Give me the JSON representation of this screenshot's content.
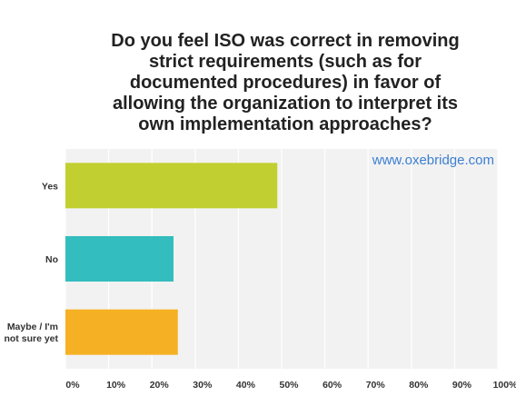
{
  "chart_data": {
    "type": "bar",
    "orientation": "horizontal",
    "title": "Do you feel ISO was correct in removing\nstrict requirements (such as for\ndocumented procedures) in favor of\nallowing the organization to interpret its\nown implementation approaches?",
    "categories": [
      "Yes",
      "No",
      "Maybe / I'm\nnot sure yet"
    ],
    "values": [
      49,
      25,
      26
    ],
    "bar_colors": [
      "#c2cf30",
      "#34bdbf",
      "#f6b023"
    ],
    "xlim": [
      0,
      100
    ],
    "x_ticks": [
      "0%",
      "10%",
      "20%",
      "30%",
      "40%",
      "50%",
      "60%",
      "70%",
      "80%",
      "90%",
      "100%"
    ],
    "grid": true,
    "watermark": "www.oxebridge.com",
    "watermark_color": "#3b7fd1",
    "plot_background": "#f2f2f2"
  }
}
